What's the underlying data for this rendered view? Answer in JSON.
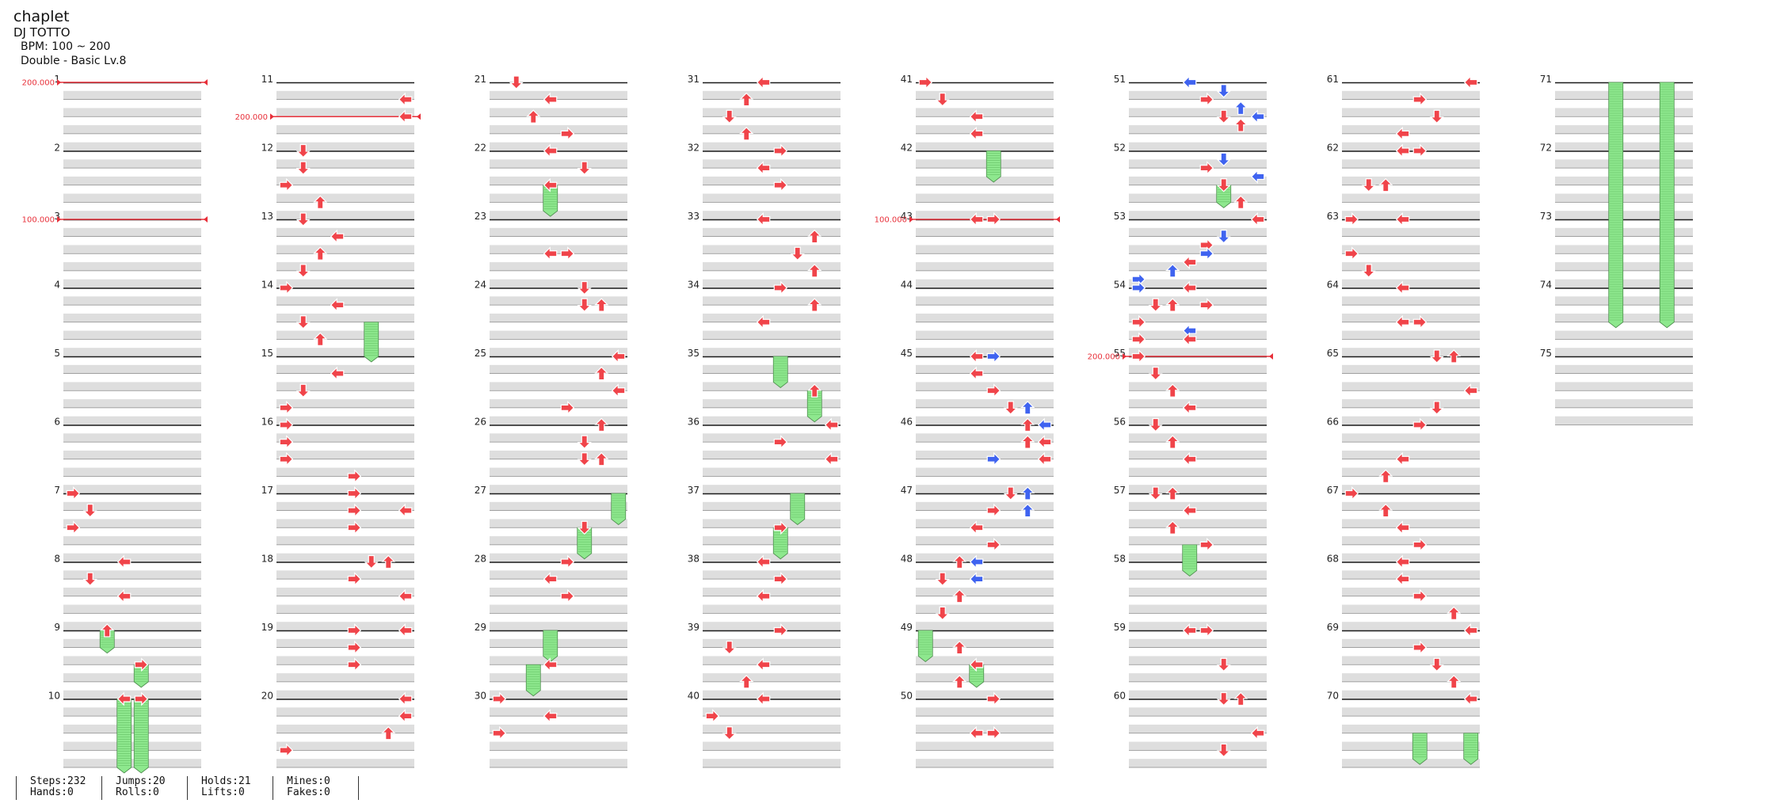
{
  "song": {
    "title": "chaplet",
    "artist": "DJ TOTTO",
    "bpm": "BPM: 100 ~ 200",
    "difficulty": "Double - Basic  Lv.8"
  },
  "colors": {
    "tap": "#f0444a",
    "tap_alt": "#3f63f0",
    "hold": "#8ee88e",
    "bpm_line": "#e8303a"
  },
  "stats": {
    "groups": [
      {
        "line1": "Steps:232",
        "line2": "Hands:0"
      },
      {
        "line1": "Jumps:20",
        "line2": "Rolls:0"
      },
      {
        "line1": "Holds:21",
        "line2": "Lifts:0"
      },
      {
        "line1": "Mines:0",
        "line2": "Fakes:0"
      }
    ]
  },
  "chart_data": {
    "type": "step-chart",
    "lanes": [
      "L",
      "D",
      "U",
      "R",
      "L",
      "D",
      "U",
      "R"
    ],
    "measures": 75,
    "bpm_changes": [
      {
        "measure": 1,
        "label": "200.000",
        "value": 200
      },
      {
        "measure": 3,
        "label": "100.000",
        "value": 100
      },
      {
        "measure": 11.5,
        "label": "200.000",
        "value": 200
      },
      {
        "measure": 43,
        "label": "100.000",
        "value": 100
      },
      {
        "measure": 55,
        "label": "200.000",
        "value": 200
      }
    ],
    "notes": [
      {
        "m": 7,
        "b": 0,
        "lane": 0
      },
      {
        "m": 7,
        "b": 2,
        "lane": 1
      },
      {
        "m": 7,
        "b": 4,
        "lane": 0
      },
      {
        "m": 8,
        "b": 0,
        "lane": 3
      },
      {
        "m": 8,
        "b": 2,
        "lane": 1
      },
      {
        "m": 8,
        "b": 4,
        "lane": 3
      },
      {
        "m": 9,
        "b": 0,
        "lane": 2
      },
      {
        "m": 9,
        "b": 4,
        "lane": 4
      },
      {
        "m": 10,
        "b": 0,
        "lane": 3
      },
      {
        "m": 10,
        "b": 0,
        "lane": 4
      },
      {
        "m": 11,
        "b": 2,
        "lane": 7
      },
      {
        "m": 11,
        "b": 4,
        "lane": 7
      },
      {
        "m": 12,
        "b": 0,
        "lane": 1
      },
      {
        "m": 12,
        "b": 2,
        "lane": 1
      },
      {
        "m": 12,
        "b": 4,
        "lane": 0
      },
      {
        "m": 12,
        "b": 6,
        "lane": 2
      },
      {
        "m": 13,
        "b": 0,
        "lane": 1
      },
      {
        "m": 13,
        "b": 2,
        "lane": 3
      },
      {
        "m": 13,
        "b": 4,
        "lane": 2
      },
      {
        "m": 13,
        "b": 6,
        "lane": 1
      },
      {
        "m": 14,
        "b": 0,
        "lane": 0
      },
      {
        "m": 14,
        "b": 2,
        "lane": 3
      },
      {
        "m": 14,
        "b": 4,
        "lane": 1
      },
      {
        "m": 14,
        "b": 6,
        "lane": 2
      },
      {
        "m": 15,
        "b": 2,
        "lane": 3
      },
      {
        "m": 15,
        "b": 4,
        "lane": 1
      },
      {
        "m": 15,
        "b": 6,
        "lane": 0
      },
      {
        "m": 16,
        "b": 0,
        "lane": 0
      },
      {
        "m": 16,
        "b": 2,
        "lane": 0
      },
      {
        "m": 16,
        "b": 4,
        "lane": 0
      },
      {
        "m": 16,
        "b": 6,
        "lane": 4
      },
      {
        "m": 17,
        "b": 0,
        "lane": 4
      },
      {
        "m": 17,
        "b": 2,
        "lane": 4
      },
      {
        "m": 17,
        "b": 2,
        "lane": 7
      },
      {
        "m": 17,
        "b": 4,
        "lane": 4
      },
      {
        "m": 18,
        "b": 0,
        "lane": 5
      },
      {
        "m": 18,
        "b": 0,
        "lane": 6
      },
      {
        "m": 18,
        "b": 2,
        "lane": 4
      },
      {
        "m": 18,
        "b": 4,
        "lane": 7
      },
      {
        "m": 19,
        "b": 0,
        "lane": 4
      },
      {
        "m": 19,
        "b": 0,
        "lane": 7
      },
      {
        "m": 19,
        "b": 2,
        "lane": 4
      },
      {
        "m": 19,
        "b": 4,
        "lane": 4
      },
      {
        "m": 20,
        "b": 0,
        "lane": 7
      },
      {
        "m": 20,
        "b": 2,
        "lane": 7
      },
      {
        "m": 20,
        "b": 4,
        "lane": 6
      },
      {
        "m": 20,
        "b": 6,
        "lane": 0
      },
      {
        "m": 21,
        "b": 0,
        "lane": 1
      },
      {
        "m": 21,
        "b": 2,
        "lane": 3
      },
      {
        "m": 21,
        "b": 4,
        "lane": 2
      },
      {
        "m": 21,
        "b": 6,
        "lane": 4
      },
      {
        "m": 22,
        "b": 0,
        "lane": 3
      },
      {
        "m": 22,
        "b": 2,
        "lane": 5
      },
      {
        "m": 22,
        "b": 4,
        "lane": 3
      },
      {
        "m": 23,
        "b": 4,
        "lane": 3
      },
      {
        "m": 23,
        "b": 4,
        "lane": 4
      },
      {
        "m": 24,
        "b": 0,
        "lane": 5
      },
      {
        "m": 24,
        "b": 2,
        "lane": 5
      },
      {
        "m": 24,
        "b": 2,
        "lane": 6
      },
      {
        "m": 25,
        "b": 0,
        "lane": 7
      },
      {
        "m": 25,
        "b": 2,
        "lane": 6
      },
      {
        "m": 25,
        "b": 4,
        "lane": 7
      },
      {
        "m": 25,
        "b": 6,
        "lane": 4
      },
      {
        "m": 26,
        "b": 0,
        "lane": 6
      },
      {
        "m": 26,
        "b": 2,
        "lane": 5
      },
      {
        "m": 26,
        "b": 4,
        "lane": 5
      },
      {
        "m": 26,
        "b": 4,
        "lane": 6
      },
      {
        "m": 27,
        "b": 4,
        "lane": 5
      },
      {
        "m": 28,
        "b": 0,
        "lane": 4
      },
      {
        "m": 28,
        "b": 2,
        "lane": 3
      },
      {
        "m": 28,
        "b": 4,
        "lane": 4
      },
      {
        "m": 29,
        "b": 4,
        "lane": 3
      },
      {
        "m": 30,
        "b": 0,
        "lane": 0
      },
      {
        "m": 30,
        "b": 2,
        "lane": 3
      },
      {
        "m": 30,
        "b": 4,
        "lane": 0
      },
      {
        "m": 31,
        "b": 0,
        "lane": 3
      },
      {
        "m": 31,
        "b": 2,
        "lane": 2
      },
      {
        "m": 31,
        "b": 4,
        "lane": 1
      },
      {
        "m": 31,
        "b": 6,
        "lane": 2
      },
      {
        "m": 32,
        "b": 0,
        "lane": 4
      },
      {
        "m": 32,
        "b": 2,
        "lane": 3
      },
      {
        "m": 32,
        "b": 4,
        "lane": 4
      },
      {
        "m": 33,
        "b": 0,
        "lane": 3
      },
      {
        "m": 33,
        "b": 2,
        "lane": 6
      },
      {
        "m": 33,
        "b": 4,
        "lane": 5
      },
      {
        "m": 33,
        "b": 6,
        "lane": 6
      },
      {
        "m": 34,
        "b": 0,
        "lane": 4
      },
      {
        "m": 34,
        "b": 2,
        "lane": 6
      },
      {
        "m": 34,
        "b": 4,
        "lane": 3
      },
      {
        "m": 35,
        "b": 4,
        "lane": 6
      },
      {
        "m": 36,
        "b": 0,
        "lane": 7
      },
      {
        "m": 36,
        "b": 2,
        "lane": 4
      },
      {
        "m": 36,
        "b": 4,
        "lane": 7
      },
      {
        "m": 37,
        "b": 4,
        "lane": 4
      },
      {
        "m": 38,
        "b": 0,
        "lane": 3
      },
      {
        "m": 38,
        "b": 2,
        "lane": 4
      },
      {
        "m": 38,
        "b": 4,
        "lane": 3
      },
      {
        "m": 39,
        "b": 0,
        "lane": 4
      },
      {
        "m": 39,
        "b": 2,
        "lane": 1
      },
      {
        "m": 39,
        "b": 4,
        "lane": 3
      },
      {
        "m": 39,
        "b": 6,
        "lane": 2
      },
      {
        "m": 40,
        "b": 0,
        "lane": 3
      },
      {
        "m": 40,
        "b": 2,
        "lane": 0
      },
      {
        "m": 40,
        "b": 4,
        "lane": 1
      },
      {
        "m": 41,
        "b": 0,
        "lane": 0
      },
      {
        "m": 41,
        "b": 2,
        "lane": 1
      },
      {
        "m": 41,
        "b": 4,
        "lane": 3
      },
      {
        "m": 41,
        "b": 6,
        "lane": 3
      },
      {
        "m": 43,
        "b": 0,
        "lane": 3
      },
      {
        "m": 43,
        "b": 0,
        "lane": 4
      },
      {
        "m": 45,
        "b": 0,
        "lane": 3
      },
      {
        "m": 45,
        "b": 0,
        "lane": 4,
        "alt": true
      },
      {
        "m": 45,
        "b": 2,
        "lane": 3
      },
      {
        "m": 45,
        "b": 4,
        "lane": 4
      },
      {
        "m": 45,
        "b": 6,
        "lane": 5
      },
      {
        "m": 45,
        "b": 6,
        "lane": 6,
        "alt": true
      },
      {
        "m": 46,
        "b": 0,
        "lane": 6
      },
      {
        "m": 46,
        "b": 0,
        "lane": 7,
        "alt": true
      },
      {
        "m": 46,
        "b": 2,
        "lane": 6
      },
      {
        "m": 46,
        "b": 2,
        "lane": 7
      },
      {
        "m": 46,
        "b": 4,
        "lane": 4,
        "alt": true
      },
      {
        "m": 46,
        "b": 4,
        "lane": 7
      },
      {
        "m": 47,
        "b": 0,
        "lane": 5
      },
      {
        "m": 47,
        "b": 0,
        "lane": 6,
        "alt": true
      },
      {
        "m": 47,
        "b": 2,
        "lane": 4
      },
      {
        "m": 47,
        "b": 2,
        "lane": 6,
        "alt": true
      },
      {
        "m": 47,
        "b": 4,
        "lane": 3
      },
      {
        "m": 47,
        "b": 6,
        "lane": 4
      },
      {
        "m": 48,
        "b": 0,
        "lane": 2
      },
      {
        "m": 48,
        "b": 0,
        "lane": 3,
        "alt": true
      },
      {
        "m": 48,
        "b": 2,
        "lane": 1
      },
      {
        "m": 48,
        "b": 2,
        "lane": 3,
        "alt": true
      },
      {
        "m": 48,
        "b": 4,
        "lane": 2
      },
      {
        "m": 48,
        "b": 6,
        "lane": 1
      },
      {
        "m": 49,
        "b": 2,
        "lane": 2
      },
      {
        "m": 49,
        "b": 4,
        "lane": 3
      },
      {
        "m": 49,
        "b": 6,
        "lane": 2
      },
      {
        "m": 50,
        "b": 0,
        "lane": 4
      },
      {
        "m": 50,
        "b": 4,
        "lane": 3
      },
      {
        "m": 50,
        "b": 4,
        "lane": 4
      },
      {
        "m": 51,
        "b": 0,
        "lane": 3
      },
      {
        "m": 51,
        "b": 0,
        "lane": 3,
        "alt": true
      },
      {
        "m": 51,
        "b": 1,
        "lane": 5
      },
      {
        "m": 51,
        "b": 1,
        "lane": 5,
        "alt": true
      },
      {
        "m": 51,
        "b": 2,
        "lane": 4
      },
      {
        "m": 51,
        "b": 3,
        "lane": 6,
        "alt": true
      },
      {
        "m": 51,
        "b": 4,
        "lane": 5
      },
      {
        "m": 51,
        "b": 4,
        "lane": 7,
        "alt": true
      },
      {
        "m": 51,
        "b": 5,
        "lane": 6
      },
      {
        "m": 52,
        "b": 1,
        "lane": 5,
        "alt": true
      },
      {
        "m": 52,
        "b": 2,
        "lane": 4
      },
      {
        "m": 52,
        "b": 3,
        "lane": 7,
        "alt": true
      },
      {
        "m": 52,
        "b": 4,
        "lane": 5
      },
      {
        "m": 52,
        "b": 6,
        "lane": 6
      },
      {
        "m": 53,
        "b": 0,
        "lane": 7
      },
      {
        "m": 53,
        "b": 2,
        "lane": 5,
        "alt": true
      },
      {
        "m": 53,
        "b": 3,
        "lane": 4
      },
      {
        "m": 53,
        "b": 4,
        "lane": 4,
        "alt": true
      },
      {
        "m": 53,
        "b": 5,
        "lane": 3
      },
      {
        "m": 53,
        "b": 6,
        "lane": 2,
        "alt": true
      },
      {
        "m": 53,
        "b": 7,
        "lane": 0,
        "alt": true
      },
      {
        "m": 54,
        "b": 0,
        "lane": 0
      },
      {
        "m": 54,
        "b": 0,
        "lane": 0,
        "alt": true
      },
      {
        "m": 54,
        "b": 0,
        "lane": 3
      },
      {
        "m": 54,
        "b": 2,
        "lane": 1
      },
      {
        "m": 54,
        "b": 2,
        "lane": 2
      },
      {
        "m": 54,
        "b": 2,
        "lane": 4
      },
      {
        "m": 54,
        "b": 4,
        "lane": 0
      },
      {
        "m": 54,
        "b": 5,
        "lane": 3,
        "alt": true
      },
      {
        "m": 54,
        "b": 6,
        "lane": 0
      },
      {
        "m": 54,
        "b": 6,
        "lane": 3
      },
      {
        "m": 55,
        "b": 0,
        "lane": 0
      },
      {
        "m": 55,
        "b": 2,
        "lane": 1
      },
      {
        "m": 55,
        "b": 4,
        "lane": 2
      },
      {
        "m": 55,
        "b": 6,
        "lane": 3
      },
      {
        "m": 56,
        "b": 0,
        "lane": 1
      },
      {
        "m": 56,
        "b": 2,
        "lane": 2
      },
      {
        "m": 56,
        "b": 4,
        "lane": 3
      },
      {
        "m": 57,
        "b": 0,
        "lane": 1
      },
      {
        "m": 57,
        "b": 0,
        "lane": 2
      },
      {
        "m": 57,
        "b": 2,
        "lane": 3
      },
      {
        "m": 57,
        "b": 4,
        "lane": 2
      },
      {
        "m": 57,
        "b": 6,
        "lane": 4
      },
      {
        "m": 59,
        "b": 0,
        "lane": 3
      },
      {
        "m": 59,
        "b": 0,
        "lane": 4
      },
      {
        "m": 59,
        "b": 4,
        "lane": 5
      },
      {
        "m": 60,
        "b": 0,
        "lane": 5
      },
      {
        "m": 60,
        "b": 0,
        "lane": 6
      },
      {
        "m": 60,
        "b": 4,
        "lane": 7
      },
      {
        "m": 60,
        "b": 6,
        "lane": 5
      },
      {
        "m": 61,
        "b": 0,
        "lane": 7
      },
      {
        "m": 61,
        "b": 2,
        "lane": 4
      },
      {
        "m": 61,
        "b": 4,
        "lane": 5
      },
      {
        "m": 61,
        "b": 6,
        "lane": 3
      },
      {
        "m": 62,
        "b": 0,
        "lane": 3
      },
      {
        "m": 62,
        "b": 0,
        "lane": 4
      },
      {
        "m": 62,
        "b": 4,
        "lane": 1
      },
      {
        "m": 62,
        "b": 4,
        "lane": 2
      },
      {
        "m": 63,
        "b": 0,
        "lane": 0
      },
      {
        "m": 63,
        "b": 0,
        "lane": 3
      },
      {
        "m": 63,
        "b": 4,
        "lane": 0
      },
      {
        "m": 63,
        "b": 6,
        "lane": 1
      },
      {
        "m": 64,
        "b": 0,
        "lane": 3
      },
      {
        "m": 64,
        "b": 4,
        "lane": 3
      },
      {
        "m": 64,
        "b": 4,
        "lane": 4
      },
      {
        "m": 65,
        "b": 0,
        "lane": 5
      },
      {
        "m": 65,
        "b": 0,
        "lane": 6
      },
      {
        "m": 65,
        "b": 4,
        "lane": 7
      },
      {
        "m": 65,
        "b": 6,
        "lane": 5
      },
      {
        "m": 66,
        "b": 0,
        "lane": 4
      },
      {
        "m": 66,
        "b": 4,
        "lane": 3
      },
      {
        "m": 66,
        "b": 6,
        "lane": 2
      },
      {
        "m": 67,
        "b": 0,
        "lane": 0
      },
      {
        "m": 67,
        "b": 2,
        "lane": 2
      },
      {
        "m": 67,
        "b": 4,
        "lane": 3
      },
      {
        "m": 67,
        "b": 6,
        "lane": 4
      },
      {
        "m": 68,
        "b": 0,
        "lane": 3
      },
      {
        "m": 68,
        "b": 2,
        "lane": 3
      },
      {
        "m": 68,
        "b": 4,
        "lane": 4
      },
      {
        "m": 68,
        "b": 6,
        "lane": 6
      },
      {
        "m": 69,
        "b": 0,
        "lane": 7
      },
      {
        "m": 69,
        "b": 2,
        "lane": 4
      },
      {
        "m": 69,
        "b": 4,
        "lane": 5
      },
      {
        "m": 69,
        "b": 6,
        "lane": 6
      },
      {
        "m": 70,
        "b": 0,
        "lane": 7
      }
    ],
    "holds": [
      {
        "m": 9,
        "b": 0,
        "lane": 2,
        "len": 2
      },
      {
        "m": 9,
        "b": 4,
        "lane": 4,
        "len": 2
      },
      {
        "m": 10,
        "b": 0,
        "lane": 3,
        "len": 8
      },
      {
        "m": 10,
        "b": 0,
        "lane": 4,
        "len": 8
      },
      {
        "m": 14,
        "b": 4,
        "lane": 5,
        "len": 4
      },
      {
        "m": 22,
        "b": 4,
        "lane": 3,
        "len": 3
      },
      {
        "m": 27,
        "b": 0,
        "lane": 7,
        "len": 3
      },
      {
        "m": 27,
        "b": 4,
        "lane": 5,
        "len": 3
      },
      {
        "m": 29,
        "b": 0,
        "lane": 3,
        "len": 3
      },
      {
        "m": 29,
        "b": 4,
        "lane": 2,
        "len": 3
      },
      {
        "m": 35,
        "b": 0,
        "lane": 4,
        "len": 3
      },
      {
        "m": 35,
        "b": 4,
        "lane": 6,
        "len": 3
      },
      {
        "m": 37,
        "b": 0,
        "lane": 5,
        "len": 3
      },
      {
        "m": 37,
        "b": 4,
        "lane": 4,
        "len": 3
      },
      {
        "m": 42,
        "b": 0,
        "lane": 4,
        "len": 3
      },
      {
        "m": 49,
        "b": 0,
        "lane": 0,
        "len": 3
      },
      {
        "m": 49,
        "b": 4,
        "lane": 3,
        "len": 2
      },
      {
        "m": 52,
        "b": 4,
        "lane": 5,
        "len": 2
      },
      {
        "m": 57,
        "b": 6,
        "lane": 3,
        "len": 3
      },
      {
        "m": 70,
        "b": 4,
        "lane": 4,
        "len": 3
      },
      {
        "m": 70,
        "b": 4,
        "lane": 7,
        "len": 3
      },
      {
        "m": 71,
        "b": 0,
        "lane": 3,
        "len": 28
      },
      {
        "m": 71,
        "b": 0,
        "lane": 6,
        "len": 28
      }
    ]
  }
}
